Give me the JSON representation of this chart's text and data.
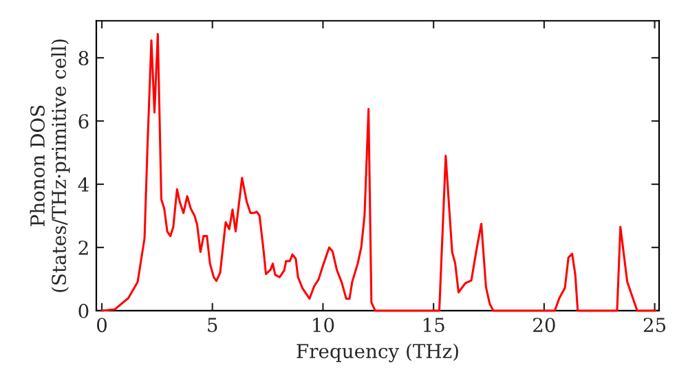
{
  "chart_data": {
    "type": "line",
    "xlabel": "Frequency (THz)",
    "ylabel": "Phonon DOS\n(States/THz·primitive cell)",
    "xlim": [
      -0.25,
      25.2
    ],
    "ylim": [
      0,
      9.17
    ],
    "xticks": [
      0,
      5,
      10,
      15,
      20,
      25
    ],
    "yticks": [
      0,
      2,
      4,
      6,
      8
    ],
    "grid": false,
    "marker": "none",
    "line_style": "solid",
    "series": [
      {
        "color": "#ff0000",
        "x": [
          0,
          0.58,
          1.2,
          1.62,
          1.93,
          2.07,
          2.24,
          2.38,
          2.53,
          2.69,
          2.82,
          2.96,
          3.1,
          3.23,
          3.4,
          3.52,
          3.69,
          3.86,
          4.02,
          4.19,
          4.31,
          4.46,
          4.6,
          4.75,
          4.89,
          5.06,
          5.18,
          5.35,
          5.6,
          5.76,
          5.91,
          6.05,
          6.34,
          6.55,
          6.72,
          6.88,
          7.0,
          7.13,
          7.32,
          7.42,
          7.63,
          7.73,
          7.84,
          8.04,
          8.25,
          8.33,
          8.5,
          8.62,
          8.77,
          8.87,
          9.08,
          9.39,
          9.6,
          9.8,
          10.01,
          10.28,
          10.43,
          10.63,
          10.84,
          11.05,
          11.2,
          11.32,
          11.57,
          11.73,
          11.88,
          12.06,
          12.19,
          12.36,
          15.26,
          15.55,
          15.84,
          15.98,
          16.13,
          16.44,
          16.71,
          16.96,
          17.16,
          17.37,
          17.54,
          17.7,
          20.48,
          20.69,
          20.94,
          21.1,
          21.27,
          21.41,
          21.52,
          23.3,
          23.45,
          23.76,
          24.21,
          25.04
        ],
        "values": [
          0,
          0.04,
          0.4,
          0.91,
          2.29,
          5.33,
          8.55,
          6.27,
          8.75,
          3.52,
          3.23,
          2.5,
          2.36,
          2.65,
          3.84,
          3.45,
          3.09,
          3.62,
          3.23,
          3.01,
          2.72,
          1.86,
          2.36,
          2.36,
          1.49,
          1.06,
          0.94,
          1.2,
          2.8,
          2.58,
          3.2,
          2.51,
          4.2,
          3.45,
          3.09,
          3.09,
          3.13,
          3.01,
          1.86,
          1.16,
          1.3,
          1.49,
          1.13,
          1.06,
          1.28,
          1.57,
          1.57,
          1.78,
          1.64,
          1.06,
          0.7,
          0.38,
          0.77,
          0.99,
          1.45,
          2.0,
          1.88,
          1.28,
          0.91,
          0.38,
          0.38,
          0.91,
          1.49,
          2.0,
          3.01,
          6.38,
          0.26,
          0,
          0,
          4.9,
          1.86,
          1.49,
          0.58,
          0.87,
          0.96,
          2.0,
          2.75,
          0.75,
          0.22,
          0,
          0,
          0.4,
          0.72,
          1.68,
          1.8,
          1.13,
          0,
          0,
          2.65,
          0.91,
          0,
          0
        ]
      }
    ]
  }
}
